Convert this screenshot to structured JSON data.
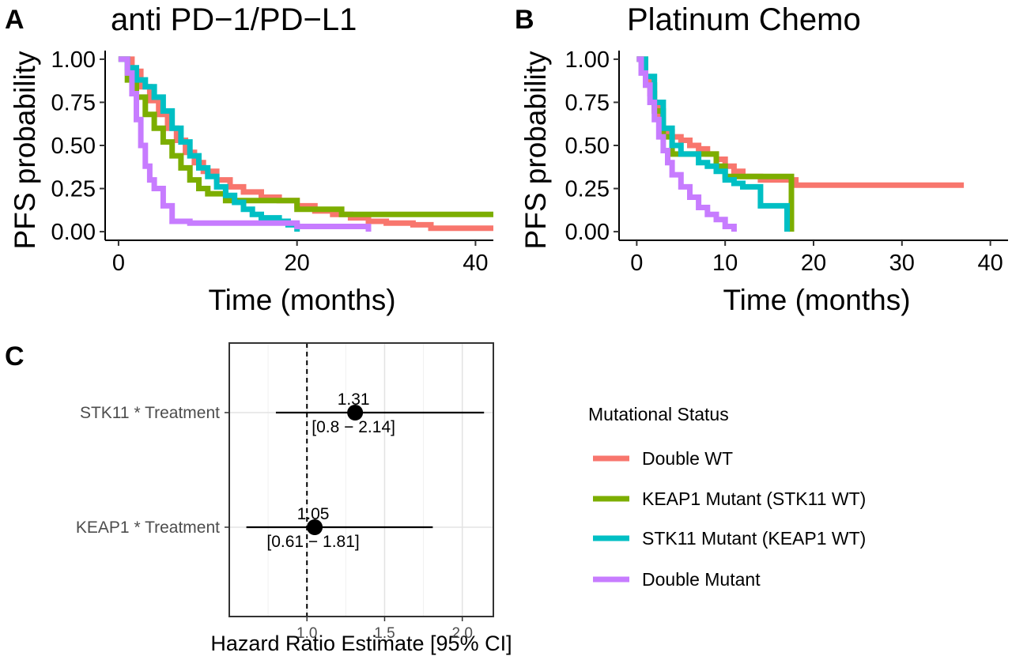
{
  "colors": {
    "double_wt": "#F8766D",
    "keap1_mut": "#7CAE00",
    "stk11_mut": "#00BFC4",
    "double_mut": "#C77CFF"
  },
  "panels": {
    "a": {
      "letter": "A",
      "title": "anti PD−1/PD−L1"
    },
    "b": {
      "letter": "B",
      "title": "Platinum Chemo"
    },
    "c": {
      "letter": "C"
    }
  },
  "legend": {
    "title": "Mutational Status",
    "items": [
      {
        "label": "Double WT",
        "color": "#F8766D"
      },
      {
        "label": "KEAP1 Mutant (STK11 WT)",
        "color": "#7CAE00"
      },
      {
        "label": "STK11 Mutant (KEAP1 WT)",
        "color": "#00BFC4"
      },
      {
        "label": "Double Mutant",
        "color": "#C77CFF"
      }
    ]
  },
  "chart_data": [
    {
      "type": "line",
      "subtype": "kaplan-meier step",
      "title": "anti PD−1/PD−L1",
      "xlabel": "Time (months)",
      "ylabel": "PFS probability",
      "xlim": [
        -1.5,
        42
      ],
      "ylim": [
        -0.05,
        1.05
      ],
      "xticks": [
        0,
        20,
        40
      ],
      "yticks": [
        "0.00",
        "0.25",
        "0.50",
        "0.75",
        "1.00"
      ],
      "grid": false,
      "series": [
        {
          "name": "Double WT",
          "color": "#F8766D",
          "x": [
            0,
            1.5,
            2.5,
            3.5,
            4.5,
            5.5,
            6.5,
            7.5,
            8.5,
            9.5,
            11,
            12.5,
            14,
            16,
            18,
            20,
            22,
            24,
            26,
            28,
            30,
            33,
            35,
            38,
            42
          ],
          "y": [
            1.0,
            0.93,
            0.84,
            0.76,
            0.68,
            0.6,
            0.53,
            0.46,
            0.4,
            0.35,
            0.3,
            0.26,
            0.23,
            0.2,
            0.18,
            0.15,
            0.12,
            0.1,
            0.08,
            0.06,
            0.05,
            0.04,
            0.02,
            0.02,
            0.02
          ]
        },
        {
          "name": "KEAP1 Mutant (STK11 WT)",
          "color": "#7CAE00",
          "x": [
            0,
            1,
            2,
            3,
            4,
            5,
            6,
            7,
            8,
            9,
            10,
            12,
            15,
            20,
            25,
            30,
            42
          ],
          "y": [
            1.0,
            0.88,
            0.78,
            0.68,
            0.6,
            0.52,
            0.44,
            0.37,
            0.3,
            0.25,
            0.22,
            0.18,
            0.18,
            0.13,
            0.1,
            0.1,
            0.1
          ]
        },
        {
          "name": "STK11 Mutant (KEAP1 WT)",
          "color": "#00BFC4",
          "x": [
            0,
            1,
            2,
            3,
            4,
            5,
            6,
            7,
            8,
            9,
            10,
            11,
            12,
            13,
            14,
            15,
            16,
            18,
            19,
            20
          ],
          "y": [
            1.0,
            0.95,
            0.88,
            0.84,
            0.78,
            0.7,
            0.6,
            0.52,
            0.44,
            0.37,
            0.32,
            0.26,
            0.21,
            0.17,
            0.13,
            0.1,
            0.08,
            0.06,
            0.04,
            0.0
          ]
        },
        {
          "name": "Double Mutant",
          "color": "#C77CFF",
          "x": [
            0,
            1,
            1.5,
            2,
            2.5,
            3,
            3.5,
            4,
            5,
            6,
            8,
            10,
            15,
            20,
            25,
            28
          ],
          "y": [
            1.0,
            0.92,
            0.8,
            0.65,
            0.5,
            0.38,
            0.3,
            0.25,
            0.15,
            0.06,
            0.05,
            0.05,
            0.05,
            0.03,
            0.03,
            0.0
          ]
        }
      ]
    },
    {
      "type": "line",
      "subtype": "kaplan-meier step",
      "title": "Platinum Chemo",
      "xlabel": "Time (months)",
      "ylabel": "PFS probability",
      "xlim": [
        -2,
        42
      ],
      "ylim": [
        -0.05,
        1.05
      ],
      "xticks": [
        0,
        10,
        20,
        30,
        40
      ],
      "yticks": [
        "0.00",
        "0.25",
        "0.50",
        "0.75",
        "1.00"
      ],
      "grid": false,
      "series": [
        {
          "name": "Double WT",
          "color": "#F8766D",
          "x": [
            0,
            0.5,
            1,
            1.5,
            2,
            2.5,
            3,
            4,
            5,
            6,
            7,
            8,
            9,
            10,
            11,
            12,
            14,
            17,
            18,
            20,
            30,
            37
          ],
          "y": [
            1.0,
            0.95,
            0.88,
            0.8,
            0.72,
            0.65,
            0.58,
            0.55,
            0.53,
            0.5,
            0.48,
            0.45,
            0.42,
            0.38,
            0.35,
            0.32,
            0.3,
            0.3,
            0.27,
            0.27,
            0.27,
            0.27
          ]
        },
        {
          "name": "KEAP1 Mutant (STK11 WT)",
          "color": "#7CAE00",
          "x": [
            0,
            1,
            2,
            3,
            4,
            5,
            8,
            9,
            10,
            12,
            17,
            17.5
          ],
          "y": [
            1.0,
            0.85,
            0.7,
            0.55,
            0.45,
            0.45,
            0.45,
            0.38,
            0.32,
            0.32,
            0.32,
            0.0
          ]
        },
        {
          "name": "STK11 Mutant (KEAP1 WT)",
          "color": "#00BFC4",
          "x": [
            0,
            1,
            2,
            3,
            4,
            5,
            7,
            8,
            9,
            10,
            11,
            12,
            14,
            16,
            17
          ],
          "y": [
            1.0,
            0.9,
            0.75,
            0.6,
            0.5,
            0.45,
            0.4,
            0.38,
            0.35,
            0.3,
            0.28,
            0.26,
            0.15,
            0.15,
            0.0
          ]
        },
        {
          "name": "Double Mutant",
          "color": "#C77CFF",
          "x": [
            0,
            0.5,
            1,
            1.5,
            2,
            2.5,
            3,
            3.5,
            4,
            5,
            6,
            7,
            8,
            9,
            10,
            11
          ],
          "y": [
            1.0,
            0.92,
            0.85,
            0.75,
            0.65,
            0.55,
            0.47,
            0.4,
            0.33,
            0.26,
            0.2,
            0.14,
            0.1,
            0.07,
            0.03,
            0.0
          ]
        }
      ]
    },
    {
      "type": "scatter",
      "subtype": "forest plot",
      "xlabel": "Hazard Ratio Estimate [95% CI]",
      "xlim": [
        0.5,
        2.2
      ],
      "xticks": [
        "1.0",
        "1.5",
        "2.0"
      ],
      "reference_line": 1.0,
      "grid": true,
      "rows": [
        {
          "label": "STK11 * Treatment",
          "estimate": 1.31,
          "ci_low": 0.8,
          "ci_high": 2.14,
          "estimate_text": "1.31",
          "ci_text": "[0.8 − 2.14]"
        },
        {
          "label": "KEAP1 * Treatment",
          "estimate": 1.05,
          "ci_low": 0.61,
          "ci_high": 1.81,
          "estimate_text": "1.05",
          "ci_text": "[0.61 − 1.81]"
        }
      ]
    }
  ]
}
